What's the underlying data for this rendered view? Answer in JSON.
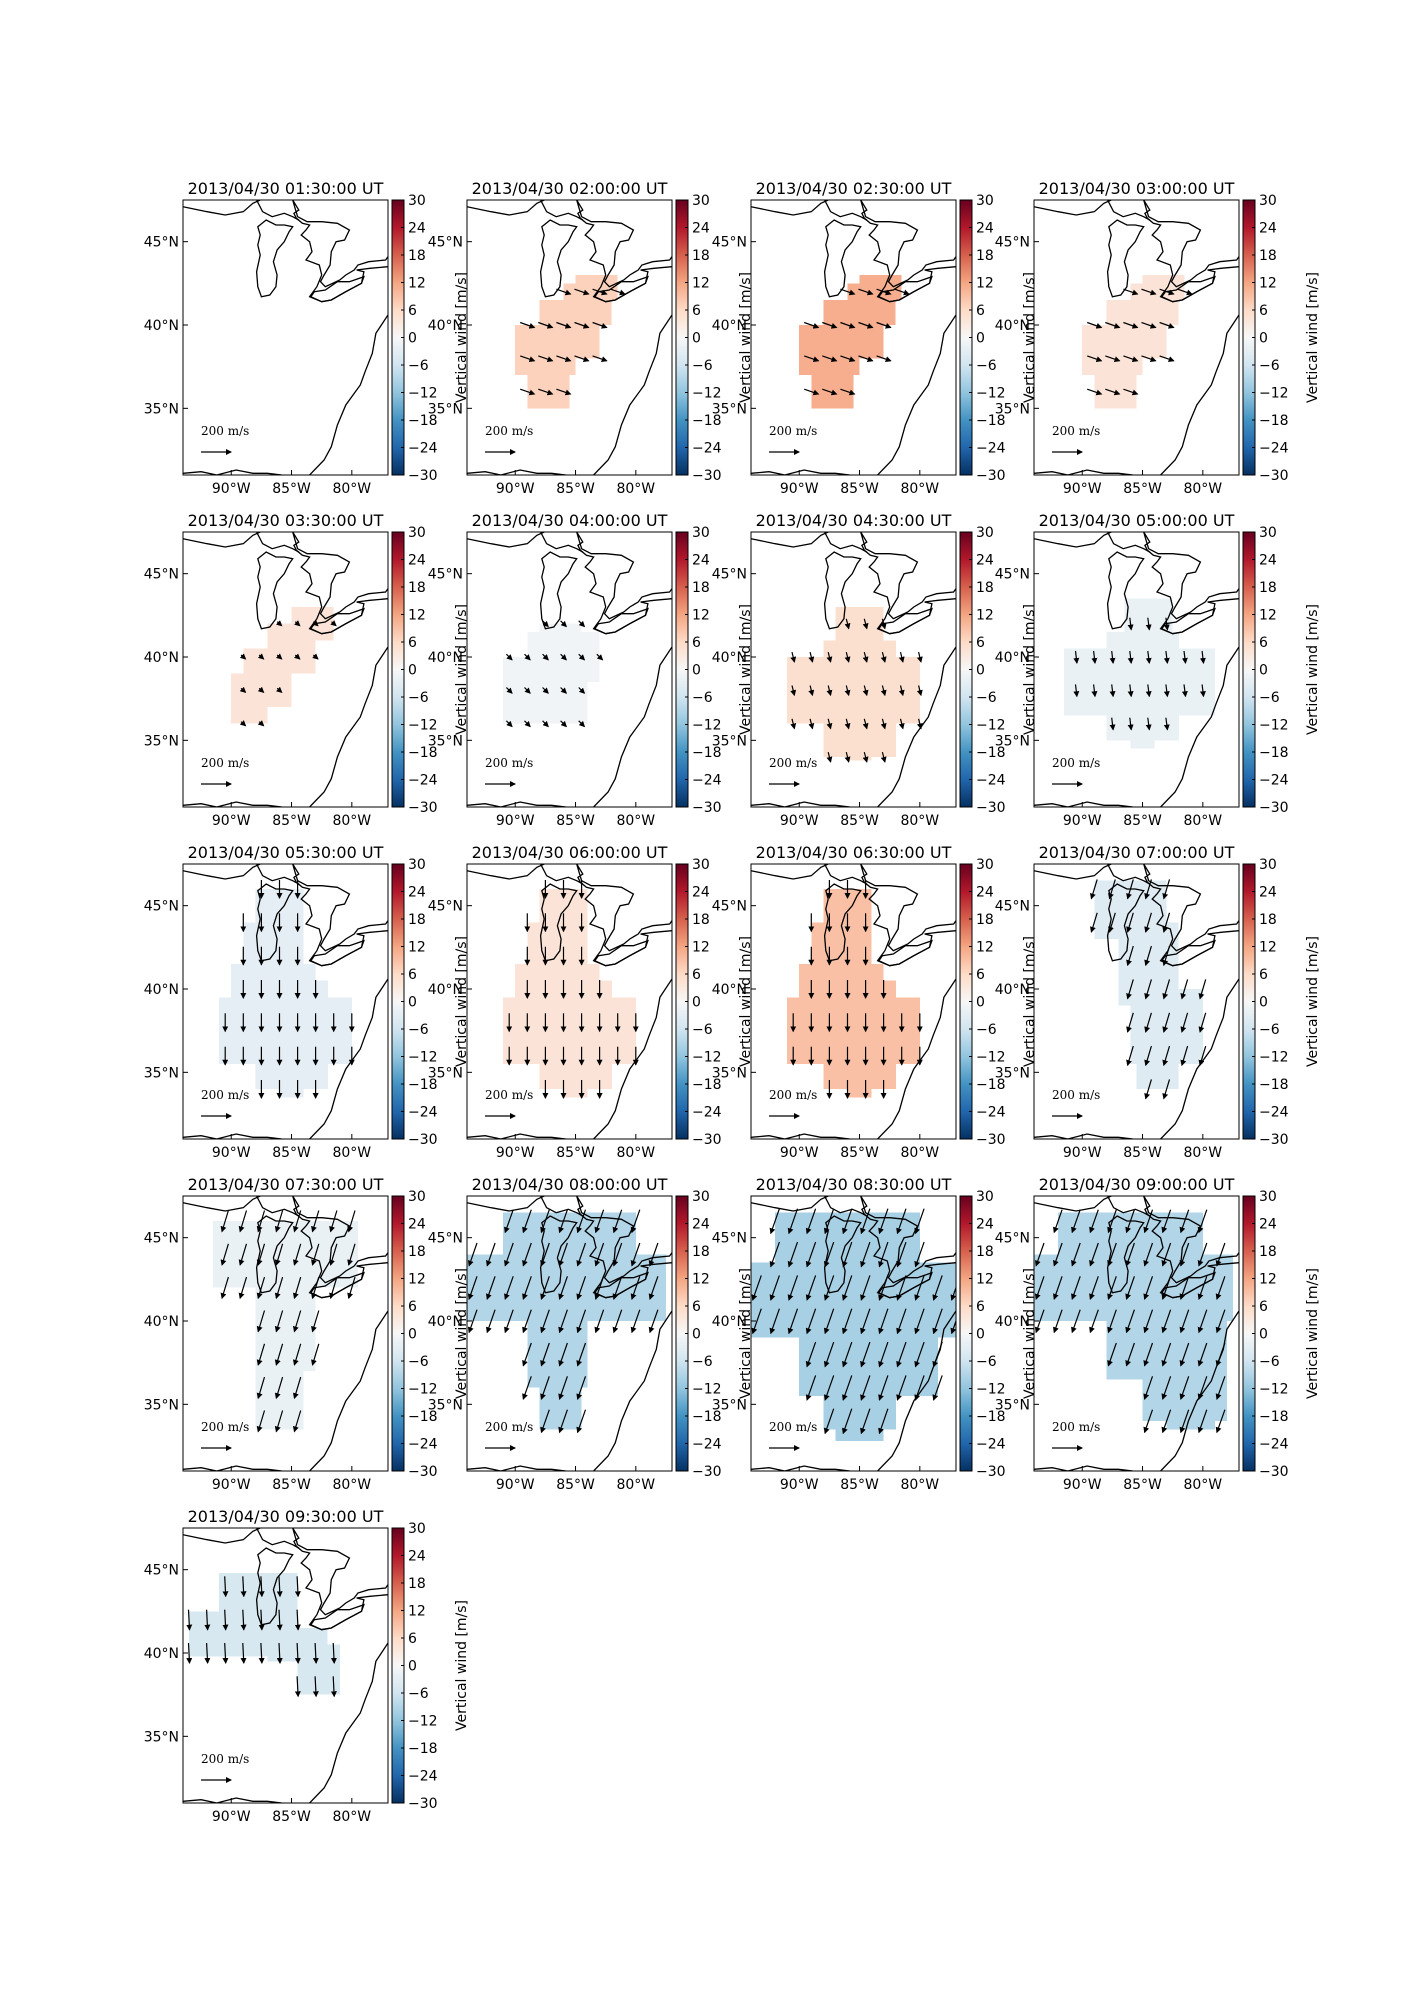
{
  "figure": {
    "panels": [
      {
        "title": "2013/04/30 01:30:00 UT",
        "value": 0,
        "shape": "none"
      },
      {
        "title": "2013/04/30 02:00:00 UT",
        "value": 7,
        "shape": "ohio"
      },
      {
        "title": "2013/04/30 02:30:00 UT",
        "value": 11,
        "shape": "ohio"
      },
      {
        "title": "2013/04/30 03:00:00 UT",
        "value": 4,
        "shape": "ohio"
      },
      {
        "title": "2013/04/30 03:30:00 UT",
        "value": 4,
        "shape": "ohio_small"
      },
      {
        "title": "2013/04/30 04:00:00 UT",
        "value": -1,
        "shape": "blob_mid"
      },
      {
        "title": "2013/04/30 04:30:00 UT",
        "value": 5,
        "shape": "blob_big"
      },
      {
        "title": "2013/04/30 05:00:00 UT",
        "value": -2,
        "shape": "blob_south"
      },
      {
        "title": "2013/04/30 05:30:00 UT",
        "value": -3,
        "shape": "hourglass"
      },
      {
        "title": "2013/04/30 06:00:00 UT",
        "value": 4,
        "shape": "hourglass"
      },
      {
        "title": "2013/04/30 06:30:00 UT",
        "value": 9,
        "shape": "hourglass"
      },
      {
        "title": "2013/04/30 07:00:00 UT",
        "value": -4,
        "shape": "column"
      },
      {
        "title": "2013/04/30 07:30:00 UT",
        "value": -2,
        "shape": "lakes_col"
      },
      {
        "title": "2013/04/30 08:00:00 UT",
        "value": -9,
        "shape": "wide_north"
      },
      {
        "title": "2013/04/30 08:30:00 UT",
        "value": -10,
        "shape": "wide_big"
      },
      {
        "title": "2013/04/30 09:00:00 UT",
        "value": -9,
        "shape": "wide_east"
      },
      {
        "title": "2013/04/30 09:30:00 UT",
        "value": -5,
        "shape": "late"
      }
    ],
    "x_ticks": [
      "90°W",
      "85°W",
      "80°W"
    ],
    "y_ticks": [
      "45°N",
      "40°N",
      "35°N"
    ],
    "colorbar": {
      "label": "Vertical wind [m/s]",
      "ticks": [
        "30",
        "24",
        "18",
        "12",
        "6",
        "0",
        "−6",
        "−12",
        "−18",
        "−24",
        "−30"
      ],
      "range": [
        -30,
        30
      ],
      "colormap": "RdBu_r"
    },
    "reference_arrow": {
      "label": "200 m/s"
    }
  },
  "chart_data": {
    "type": "heatmap",
    "description_units": "vertical wind m/s (color), horizontal wind vectors (arrows)",
    "colorbar_label": "Vertical wind [m/s]",
    "vlim": [
      -30,
      30
    ],
    "xlim_lon": [
      -94,
      -77
    ],
    "ylim_lat": [
      31,
      47.5
    ],
    "reference_vector": "200 m/s",
    "panels": [
      {
        "time": "2013/04/30 01:30:00 UT",
        "approx_vertical_wind": null
      },
      {
        "time": "2013/04/30 02:00:00 UT",
        "approx_vertical_wind": 7
      },
      {
        "time": "2013/04/30 02:30:00 UT",
        "approx_vertical_wind": 11
      },
      {
        "time": "2013/04/30 03:00:00 UT",
        "approx_vertical_wind": 4
      },
      {
        "time": "2013/04/30 03:30:00 UT",
        "approx_vertical_wind": 4
      },
      {
        "time": "2013/04/30 04:00:00 UT",
        "approx_vertical_wind": -1
      },
      {
        "time": "2013/04/30 04:30:00 UT",
        "approx_vertical_wind": 5
      },
      {
        "time": "2013/04/30 05:00:00 UT",
        "approx_vertical_wind": -2
      },
      {
        "time": "2013/04/30 05:30:00 UT",
        "approx_vertical_wind": -3
      },
      {
        "time": "2013/04/30 06:00:00 UT",
        "approx_vertical_wind": 4
      },
      {
        "time": "2013/04/30 06:30:00 UT",
        "approx_vertical_wind": 9
      },
      {
        "time": "2013/04/30 07:00:00 UT",
        "approx_vertical_wind": -4
      },
      {
        "time": "2013/04/30 07:30:00 UT",
        "approx_vertical_wind": -2
      },
      {
        "time": "2013/04/30 08:00:00 UT",
        "approx_vertical_wind": -9
      },
      {
        "time": "2013/04/30 08:30:00 UT",
        "approx_vertical_wind": -10
      },
      {
        "time": "2013/04/30 09:00:00 UT",
        "approx_vertical_wind": -9
      },
      {
        "time": "2013/04/30 09:30:00 UT",
        "approx_vertical_wind": -5
      }
    ]
  }
}
